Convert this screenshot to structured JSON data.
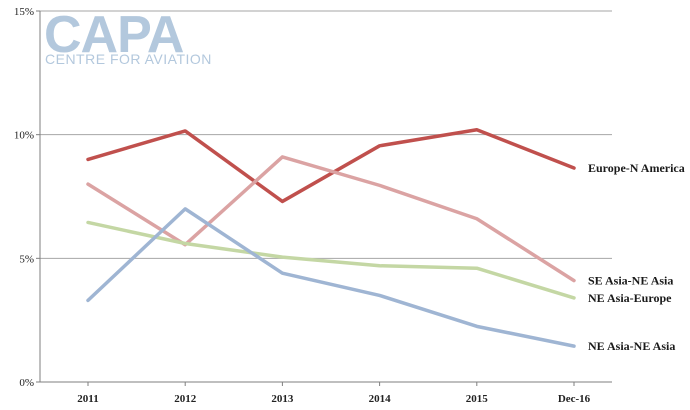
{
  "logo": {
    "main": "CAPA",
    "sub": "CENTRE FOR AVIATION",
    "color": "#b3c8dd"
  },
  "chart_data": {
    "type": "line",
    "categories": [
      "2011",
      "2012",
      "2013",
      "2014",
      "2015",
      "Dec-16"
    ],
    "ylim": [
      0,
      15
    ],
    "yticks": [
      0,
      5,
      10,
      15
    ],
    "ytick_labels": [
      "0%",
      "5%",
      "10%",
      "15%"
    ],
    "grid": true,
    "legend": "inline-right",
    "series": [
      {
        "name": "Europe-N America",
        "color": "#c0504d",
        "values": [
          9.0,
          10.15,
          7.3,
          9.55,
          10.2,
          8.65
        ]
      },
      {
        "name": "SE Asia-NE Asia",
        "color": "#dba3a3",
        "values": [
          8.0,
          5.55,
          9.1,
          7.95,
          6.6,
          4.1
        ]
      },
      {
        "name": "NE Asia-Europe",
        "color": "#c4d7a4",
        "values": [
          6.45,
          5.6,
          5.05,
          4.7,
          4.6,
          3.4
        ]
      },
      {
        "name": "NE Asia-NE Asia",
        "color": "#9fb5d3",
        "values": [
          3.3,
          7.0,
          4.4,
          3.5,
          2.25,
          1.45
        ]
      }
    ]
  }
}
